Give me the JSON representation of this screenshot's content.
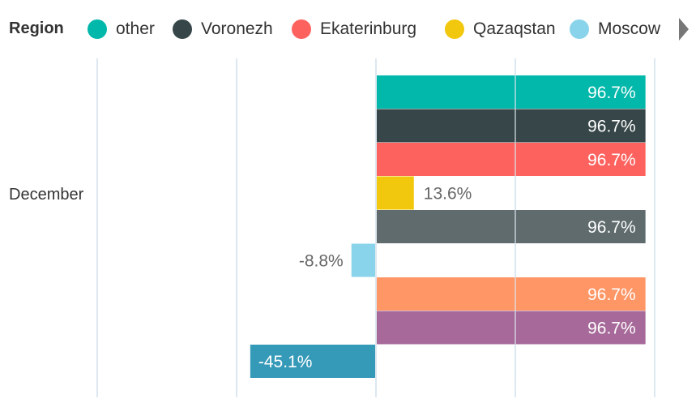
{
  "chart_data": {
    "type": "bar",
    "orientation": "horizontal",
    "legend": {
      "title": "Region",
      "placement": "top",
      "entries": [
        {
          "name": "other",
          "color": "#01B8AA"
        },
        {
          "name": "Voronezh",
          "color": "#374649"
        },
        {
          "name": "Ekaterinburg",
          "color": "#FD625E"
        },
        {
          "name": "Qazaqstan",
          "color": "#F2C80F"
        },
        {
          "name": "Moscow",
          "color": "#8AD4EB"
        }
      ]
    },
    "categories": [
      "December"
    ],
    "series": [
      {
        "color": "#01B8AA",
        "value": 96.7,
        "label": "96.7%"
      },
      {
        "color": "#374649",
        "value": 96.7,
        "label": "96.7%"
      },
      {
        "color": "#FD625E",
        "value": 96.7,
        "label": "96.7%"
      },
      {
        "color": "#F2C80F",
        "value": 13.6,
        "label": "13.6%"
      },
      {
        "color": "#5F6B6D",
        "value": 96.7,
        "label": "96.7%"
      },
      {
        "color": "#8AD4EB",
        "value": -8.8,
        "label": "-8.8%"
      },
      {
        "color": "#FE9666",
        "value": 96.7,
        "label": "96.7%"
      },
      {
        "color": "#A66999",
        "value": 96.7,
        "label": "96.7%"
      },
      {
        "color": "#3599B8",
        "value": -45.1,
        "label": "-45.1%"
      }
    ],
    "xlim": [
      -100,
      100
    ],
    "gridlines": [
      -100,
      -50,
      0,
      50,
      100
    ],
    "grid": true
  }
}
